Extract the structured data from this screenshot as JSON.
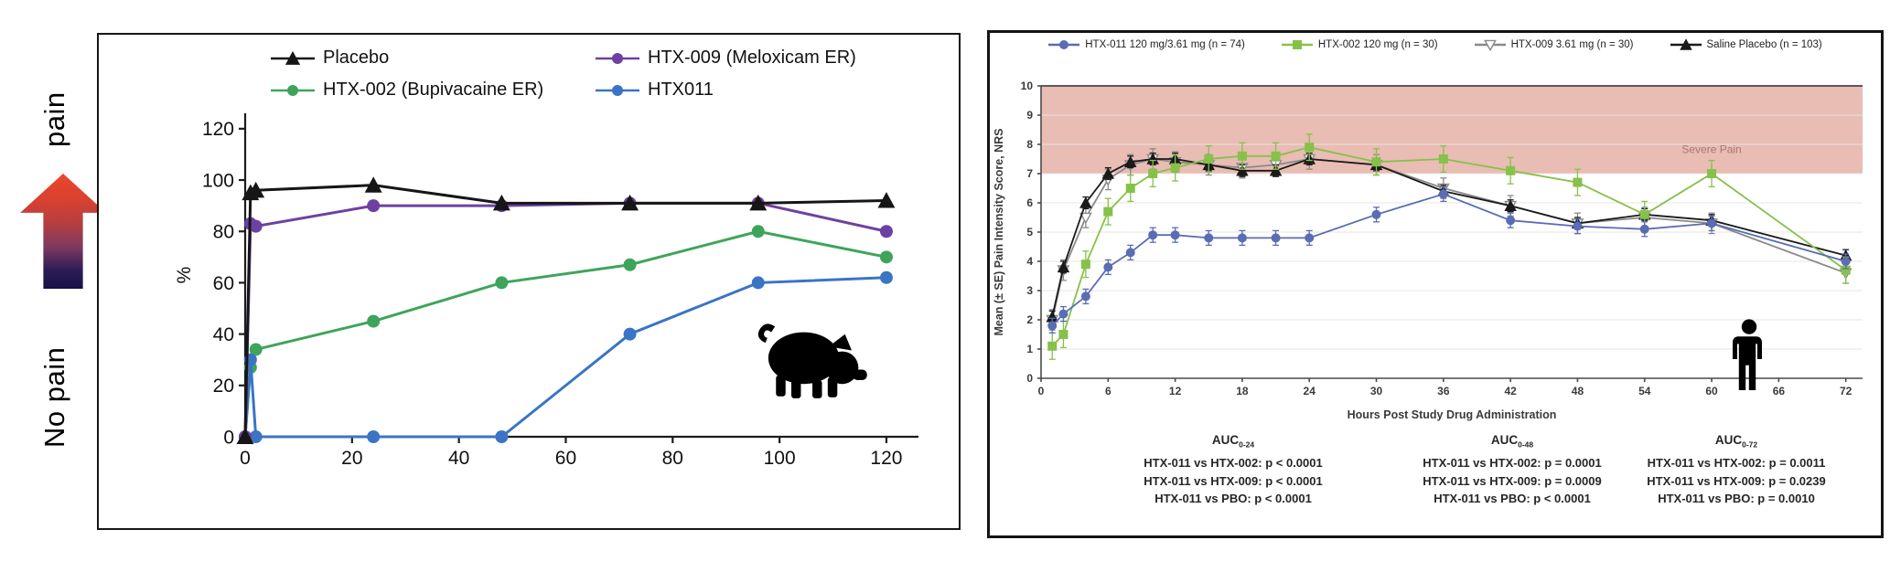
{
  "gradient_axis": {
    "top_label": "pain",
    "bottom_label": "No pain",
    "arrow_top_color": "#e8472e",
    "arrow_bottom_color": "#171247"
  },
  "chart_data": [
    {
      "type": "line",
      "icon": "pig-silhouette",
      "title": "",
      "xlabel": "",
      "ylabel": "%",
      "xlim": [
        0,
        126
      ],
      "ylim": [
        0,
        126
      ],
      "xticks": [
        0,
        20,
        40,
        60,
        80,
        100,
        120
      ],
      "yticks": [
        0,
        20,
        40,
        60,
        80,
        100,
        120
      ],
      "grid": false,
      "legend_position": "top-inside-2x2",
      "x": [
        0,
        1,
        2,
        24,
        48,
        72,
        96,
        120
      ],
      "draw_order": [
        2,
        3,
        1,
        0
      ],
      "series": [
        {
          "name": "Placebo",
          "color": "#161616",
          "marker": "triangle-up",
          "values": [
            0,
            95,
            96,
            98,
            91,
            91,
            91,
            92
          ]
        },
        {
          "name": "HTX-009 (Meloxicam ER)",
          "color": "#6d41a1",
          "marker": "circle",
          "values": [
            0,
            83,
            82,
            90,
            90,
            91,
            91,
            80
          ]
        },
        {
          "name": "HTX-002 (Bupivacaine ER)",
          "color": "#3fa45b",
          "marker": "circle",
          "values": [
            0,
            27,
            34,
            45,
            60,
            67,
            80,
            70
          ]
        },
        {
          "name": "HTX011",
          "color": "#3b74c4",
          "marker": "circle",
          "values": [
            0,
            30,
            0,
            0,
            0,
            40,
            60,
            62
          ]
        }
      ]
    },
    {
      "type": "line",
      "icon": "person-silhouette",
      "title": "",
      "xlabel": "Hours Post Study Drug Administration",
      "ylabel": "Mean (± SE) Pain Intensity Score, NRS",
      "xlim": [
        0,
        73.5
      ],
      "ylim": [
        0,
        10
      ],
      "xticks": [
        0,
        6,
        12,
        18,
        24,
        30,
        36,
        42,
        48,
        54,
        60,
        66,
        72
      ],
      "yticks": [
        0,
        1,
        2,
        3,
        4,
        5,
        6,
        7,
        8,
        9,
        10
      ],
      "grid": true,
      "band": {
        "from": 7,
        "to": 10,
        "color": "#e9bcb4",
        "label": "Severe Pain",
        "label_color": "#a8786f"
      },
      "legend_position": "top-inside-row",
      "x": [
        1,
        2,
        4,
        6,
        8,
        10,
        12,
        15,
        18,
        21,
        24,
        30,
        36,
        42,
        48,
        54,
        60,
        72
      ],
      "draw_order": [
        2,
        3,
        1,
        0
      ],
      "series": [
        {
          "name": "HTX-011 120 mg/3.61 mg (n = 74)",
          "color": "#5a6cb4",
          "marker": "circle",
          "se": 0.25,
          "values": [
            1.8,
            2.2,
            2.8,
            3.8,
            4.3,
            4.9,
            4.9,
            4.8,
            4.8,
            4.8,
            4.8,
            5.6,
            6.3,
            5.4,
            5.2,
            5.1,
            5.3,
            4.0
          ]
        },
        {
          "name": "HTX-002 120 mg (n = 30)",
          "color": "#86c149",
          "marker": "square",
          "se": 0.45,
          "values": [
            1.1,
            1.5,
            3.9,
            5.7,
            6.5,
            7.0,
            7.2,
            7.5,
            7.6,
            7.6,
            7.9,
            7.4,
            7.5,
            7.1,
            6.7,
            5.6,
            7.0,
            3.7
          ]
        },
        {
          "name": "HTX-009 3.61 mg (n = 30)",
          "color": "#8a8a8a",
          "marker": "triangle-down-open",
          "se": 0.35,
          "values": [
            2.0,
            3.7,
            5.5,
            6.8,
            7.3,
            7.5,
            7.4,
            7.3,
            7.2,
            7.3,
            7.5,
            7.3,
            6.5,
            5.9,
            5.3,
            5.5,
            5.3,
            3.6
          ]
        },
        {
          "name": "Saline Placebo (n = 103)",
          "color": "#1a1a1a",
          "marker": "triangle-up",
          "se": 0.2,
          "values": [
            2.1,
            3.8,
            6.0,
            7.0,
            7.4,
            7.5,
            7.5,
            7.3,
            7.1,
            7.1,
            7.5,
            7.3,
            6.4,
            5.9,
            5.3,
            5.6,
            5.4,
            4.2
          ]
        }
      ],
      "auc_blocks": [
        {
          "title": "AUC",
          "sub": "0-24",
          "lines": [
            "HTX-011 vs HTX-002: p < 0.0001",
            "HTX-011 vs HTX-009: p < 0.0001",
            "HTX-011 vs PBO: p < 0.0001"
          ]
        },
        {
          "title": "AUC",
          "sub": "0-48",
          "lines": [
            "HTX-011 vs HTX-002: p = 0.0001",
            "HTX-011 vs HTX-009: p = 0.0009",
            "HTX-011 vs PBO: p < 0.0001"
          ]
        },
        {
          "title": "AUC",
          "sub": "0-72",
          "lines": [
            "HTX-011 vs HTX-002: p = 0.0011",
            "HTX-011 vs HTX-009: p = 0.0239",
            "HTX-011 vs PBO: p = 0.0010"
          ]
        }
      ]
    }
  ]
}
